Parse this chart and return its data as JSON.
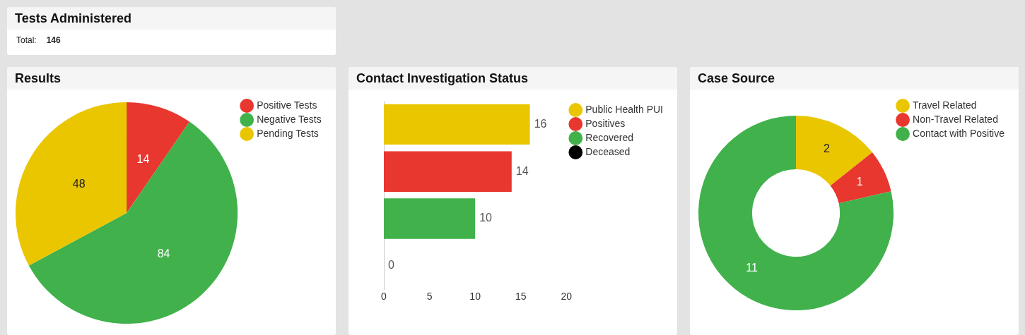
{
  "chart_data": [
    {
      "type": "other",
      "title": "Tests Administered",
      "annotations": [
        "Total:",
        "146"
      ]
    },
    {
      "type": "pie",
      "title": "Results",
      "categories": [
        "Positive Tests",
        "Negative Tests",
        "Pending Tests"
      ],
      "values": [
        14,
        84,
        48
      ],
      "colors": [
        "#e8372f",
        "#41b14b",
        "#eac600"
      ],
      "data_labels": true,
      "legend": "top right"
    },
    {
      "type": "bar",
      "orientation": "horizontal",
      "title": "Contact Investigation Status",
      "categories": [
        null,
        null,
        null,
        null
      ],
      "series": [
        {
          "name": "Public Health PUI",
          "color": "#eac600",
          "values": [
            16,
            null,
            null,
            null
          ]
        },
        {
          "name": "Positives",
          "color": "#e8372f",
          "values": [
            null,
            14,
            null,
            null
          ]
        },
        {
          "name": "Recovered",
          "color": "#41b14b",
          "values": [
            null,
            null,
            10,
            null
          ]
        },
        {
          "name": "Deceased",
          "color": "#000000",
          "values": [
            null,
            null,
            null,
            0
          ]
        }
      ],
      "xlim": [
        0,
        20
      ],
      "xticks": [
        0,
        5,
        10,
        15,
        20
      ],
      "data_labels": true,
      "legend": "top right"
    },
    {
      "type": "donut",
      "title": "Case Source",
      "categories": [
        "Travel Related",
        "Non-Travel Related",
        "Contact with Positive"
      ],
      "values": [
        2,
        1,
        11
      ],
      "colors": [
        "#eac600",
        "#e8372f",
        "#41b14b"
      ],
      "data_labels": true,
      "legend": "top right"
    }
  ]
}
